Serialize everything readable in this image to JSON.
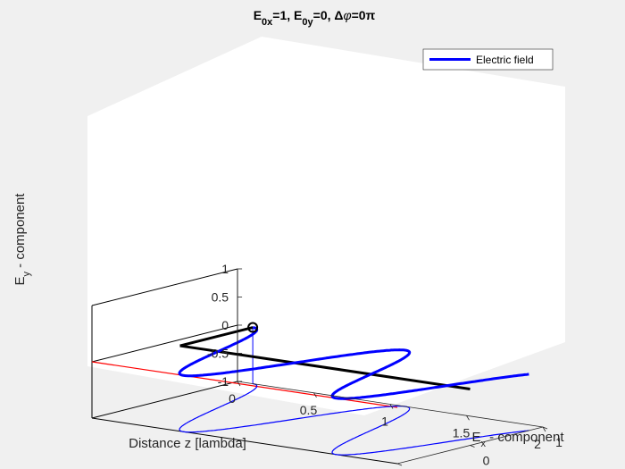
{
  "chart_data": {
    "type": "line3d",
    "title": {
      "parts": [
        {
          "text": "E",
          "style": "normal"
        },
        {
          "text": "0x",
          "style": "sub"
        },
        {
          "text": "=1, E",
          "style": "normal"
        },
        {
          "text": "0y",
          "style": "sub"
        },
        {
          "text": "=0, ",
          "style": "normal"
        },
        {
          "text": "Δ",
          "style": "normal"
        },
        {
          "text": "φ",
          "style": "italic"
        },
        {
          "text": "=0π",
          "style": "normal"
        }
      ]
    },
    "xlabel": {
      "main": "E",
      "sub": "x",
      "rest": " - component"
    },
    "ylabel": {
      "main": "E",
      "sub": "y",
      "rest": " - component"
    },
    "zlabel": "Distance z [lambda]",
    "legend": {
      "entries": [
        "Electric field"
      ],
      "position": "top-right"
    },
    "ex_ticks": [
      "-1",
      "0",
      "1"
    ],
    "ey_ticks": [
      "-1",
      "-0.5",
      "0",
      "0.5",
      "1"
    ],
    "z_ticks": [
      "0",
      "0.5",
      "1",
      "1.5",
      "2"
    ],
    "ex_range": [
      -1,
      1
    ],
    "ey_range": [
      -1,
      1
    ],
    "z_range": [
      0,
      2
    ],
    "grid": false,
    "series": [
      {
        "name": "Electric field",
        "color": "#0000ff",
        "ex_amplitude": 1,
        "ey_amplitude": 0,
        "phase_difference_pi": 0,
        "z_start": 0.1,
        "z_end": 2,
        "wavelengths": 1
      }
    ],
    "marker": {
      "ex": 1,
      "ey": 0,
      "z": 0.1,
      "shape": "circle"
    },
    "colors": {
      "background": "#f0f0f0",
      "axes_face": "#ffffff",
      "field": "#0000ff",
      "propagation_axis": "#000000",
      "ex_reference_line": "#ff0000"
    }
  }
}
